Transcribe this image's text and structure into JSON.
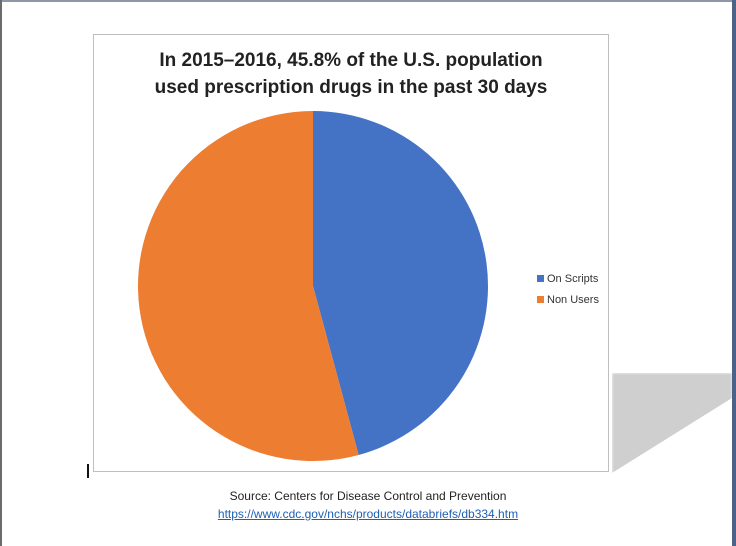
{
  "chart_data": {
    "type": "pie",
    "title_lines": [
      "In 2015–2016, 45.8% of the U.S. population",
      "used prescription drugs in the past 30 days"
    ],
    "categories": [
      "On Scripts",
      "Non Users"
    ],
    "values": [
      45.8,
      54.2
    ],
    "unit": "%",
    "colors": [
      "#4472c4",
      "#ed7d31"
    ],
    "start_angle": "12 o'clock",
    "direction": "clockwise",
    "legend": {
      "placement": "right",
      "entries": [
        "On Scripts",
        "Non Users"
      ]
    }
  },
  "footer": {
    "source_text": "Source: Centers for Disease Control and Prevention",
    "link_text": "https://www.cdc.gov/nchs/products/databriefs/db334.htm"
  }
}
